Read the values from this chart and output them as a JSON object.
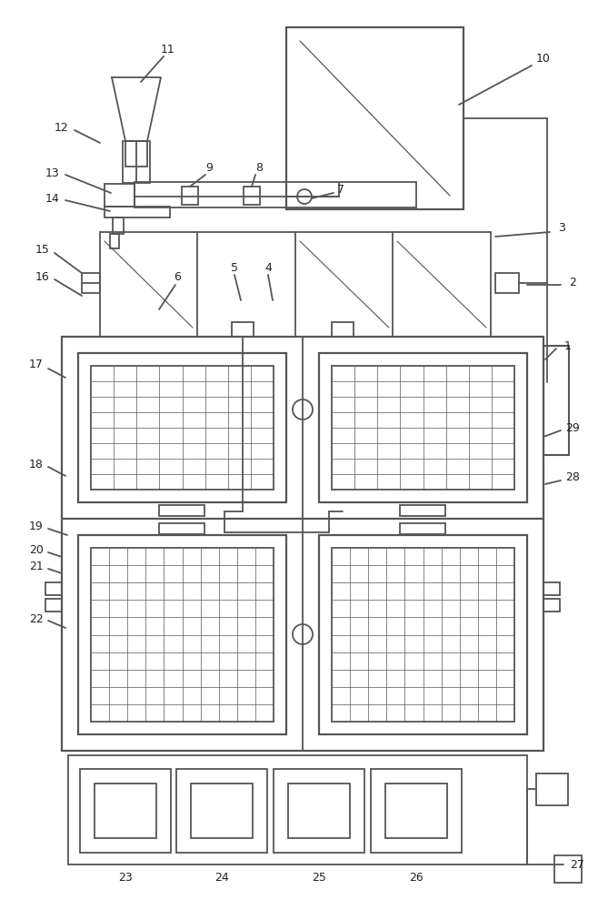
{
  "bg_color": "#ffffff",
  "lc": "#555555",
  "lw": 1.3,
  "fig_w": 6.69,
  "fig_h": 10.0
}
